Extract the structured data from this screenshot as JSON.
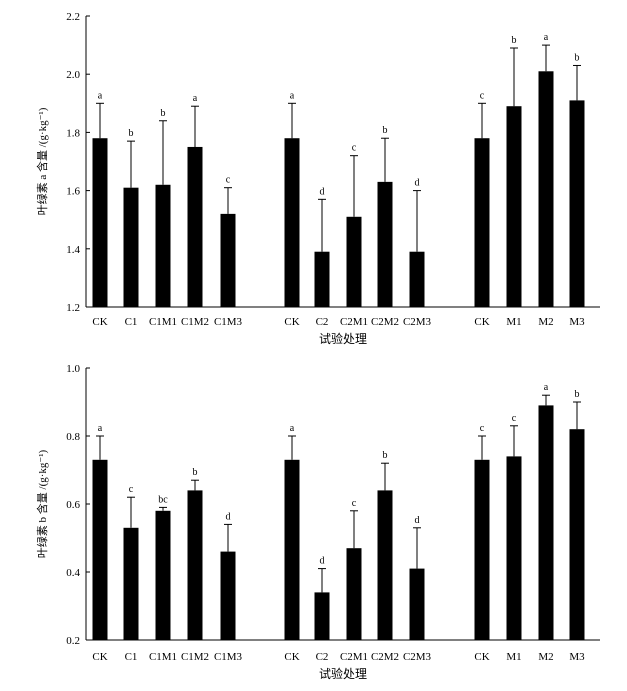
{
  "chart_data": [
    {
      "type": "bar",
      "title": "",
      "xlabel": "试验处理",
      "ylabel": "叶绿素 a 含量 /(g·kg⁻¹)",
      "ylim": [
        1.2,
        2.2
      ],
      "yticks": [
        "1.2",
        "1.4",
        "1.6",
        "1.8",
        "2.0",
        "2.2"
      ],
      "grid": false,
      "error_bars": true,
      "categories": [
        "CK",
        "C1",
        "C1M1",
        "C1M2",
        "C1M3",
        "CK",
        "C2",
        "C2M1",
        "C2M2",
        "C2M3",
        "CK",
        "M1",
        "M2",
        "M3"
      ],
      "values": [
        1.78,
        1.61,
        1.62,
        1.75,
        1.52,
        1.78,
        1.39,
        1.51,
        1.63,
        1.39,
        1.78,
        1.89,
        2.01,
        1.91
      ],
      "errors": [
        0.12,
        0.16,
        0.22,
        0.14,
        0.09,
        0.12,
        0.18,
        0.21,
        0.15,
        0.21,
        0.12,
        0.2,
        0.09,
        0.12
      ],
      "significance": [
        "a",
        "b",
        "b",
        "a",
        "c",
        "a",
        "d",
        "c",
        "b",
        "d",
        "c",
        "b",
        "a",
        "b"
      ]
    },
    {
      "type": "bar",
      "title": "",
      "xlabel": "试验处理",
      "ylabel": "叶绿素 b 含量 /(g·kg⁻¹)",
      "ylim": [
        0.2,
        1.0
      ],
      "yticks": [
        "0.2",
        "0.4",
        "0.6",
        "0.8",
        "1.0"
      ],
      "grid": false,
      "error_bars": true,
      "categories": [
        "CK",
        "C1",
        "C1M1",
        "C1M2",
        "C1M3",
        "CK",
        "C2",
        "C2M1",
        "C2M2",
        "C2M3",
        "CK",
        "M1",
        "M2",
        "M3"
      ],
      "values": [
        0.73,
        0.53,
        0.58,
        0.64,
        0.46,
        0.73,
        0.34,
        0.47,
        0.64,
        0.41,
        0.73,
        0.74,
        0.89,
        0.82
      ],
      "errors": [
        0.07,
        0.09,
        0.01,
        0.03,
        0.08,
        0.07,
        0.07,
        0.11,
        0.08,
        0.12,
        0.07,
        0.09,
        0.03,
        0.08
      ],
      "significance": [
        "a",
        "c",
        "bc",
        "b",
        "d",
        "a",
        "d",
        "c",
        "b",
        "d",
        "c",
        "c",
        "a",
        "b"
      ]
    }
  ]
}
